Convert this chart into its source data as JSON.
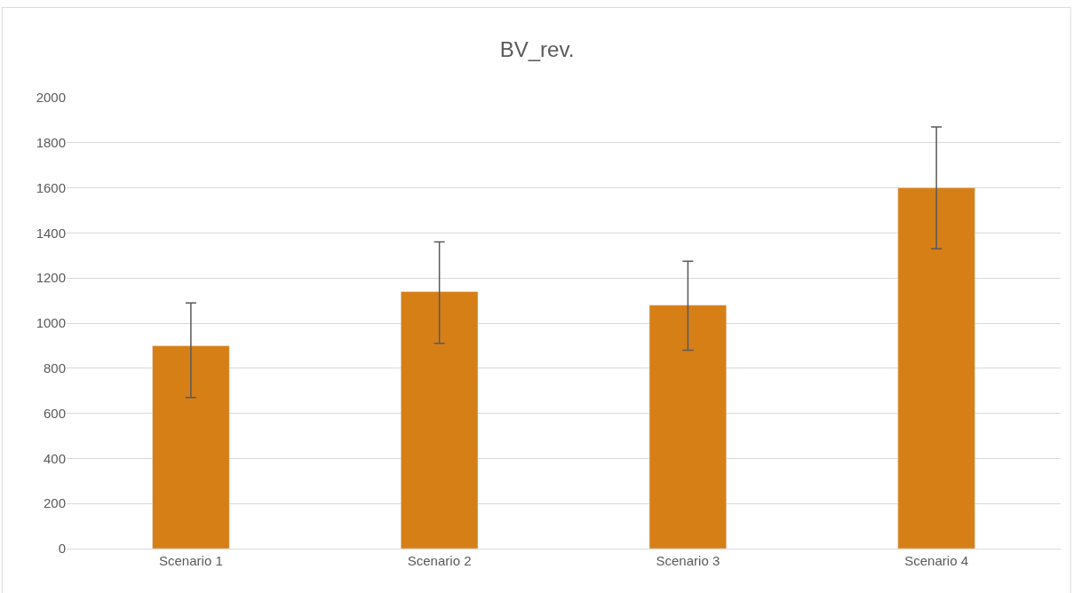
{
  "chart_data": {
    "type": "bar",
    "title": "BV_rev.",
    "categories": [
      "Scenario 1",
      "Scenario 2",
      "Scenario 3",
      "Scenario 4"
    ],
    "values": [
      900,
      1140,
      1080,
      1600
    ],
    "color": "#d67f17",
    "errors": [
      [
        670,
        1090
      ],
      [
        910,
        1360
      ],
      [
        880,
        1275
      ],
      [
        1330,
        1870
      ]
    ],
    "ylim": [
      0,
      2000
    ],
    "yticks": [
      0,
      200,
      400,
      600,
      800,
      1000,
      1200,
      1400,
      1600,
      1800,
      2000
    ],
    "grid": "y"
  }
}
